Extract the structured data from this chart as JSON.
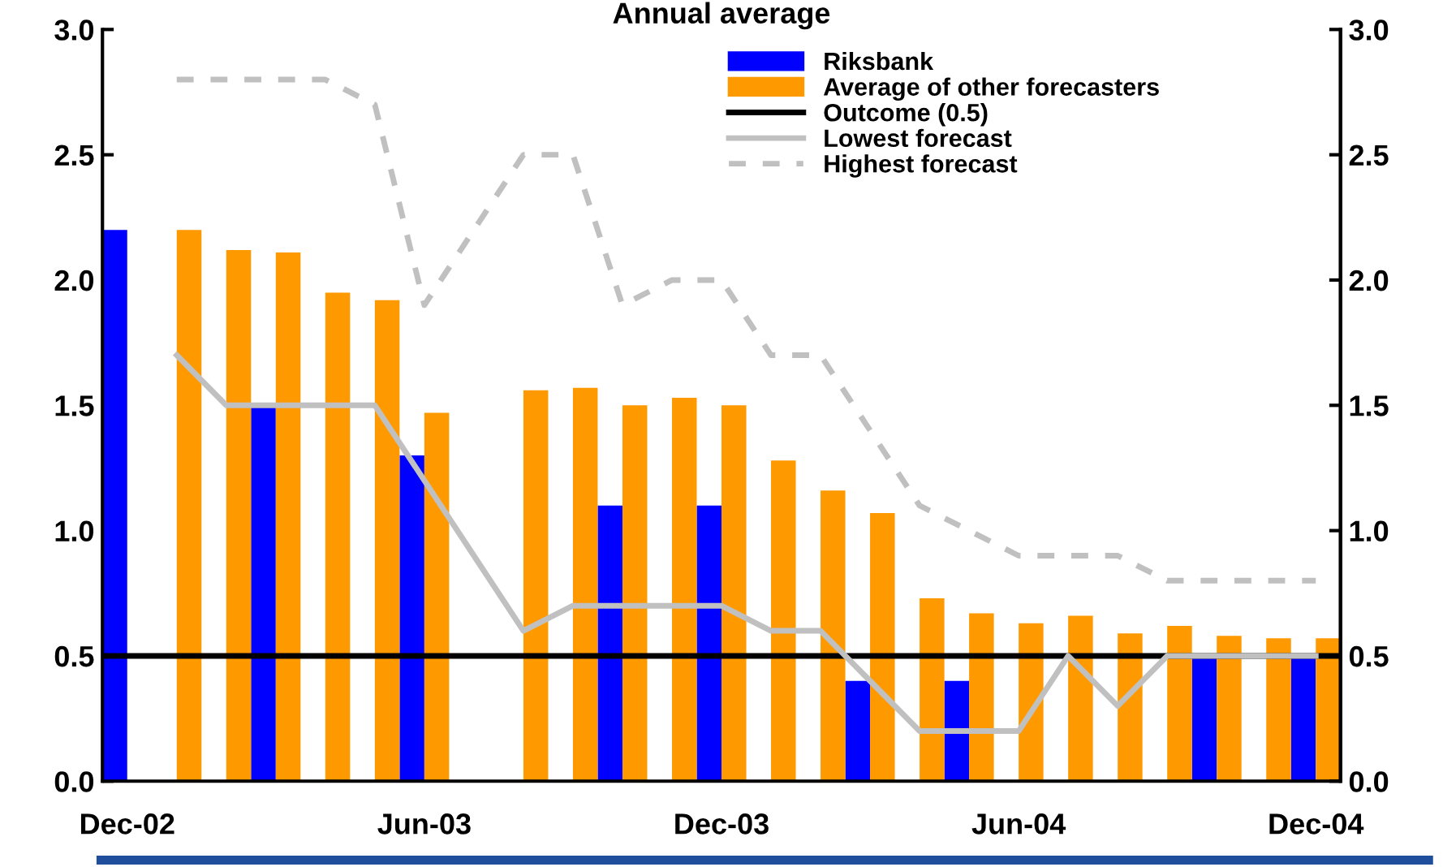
{
  "chart_data": {
    "type": "bar",
    "title": "Annual average",
    "categories": [
      "Dec-02",
      null,
      null,
      null,
      null,
      null,
      "Jun-03",
      null,
      null,
      null,
      null,
      null,
      "Dec-03",
      null,
      null,
      null,
      null,
      null,
      "Jun-04",
      null,
      null,
      null,
      null,
      null,
      "Dec-04"
    ],
    "series": [
      {
        "name": "Riksbank",
        "color": "#0000ff",
        "values": [
          2.2,
          null,
          null,
          1.5,
          null,
          null,
          1.3,
          null,
          null,
          null,
          1.1,
          null,
          1.1,
          null,
          null,
          0.4,
          null,
          0.4,
          null,
          null,
          null,
          null,
          0.5,
          null,
          0.5
        ]
      },
      {
        "name": "Average of other forecasters",
        "color": "#ff9900",
        "values": [
          null,
          2.2,
          2.12,
          2.11,
          1.95,
          1.92,
          1.47,
          null,
          1.56,
          1.57,
          1.5,
          1.53,
          1.5,
          1.28,
          1.16,
          1.07,
          0.73,
          0.67,
          0.63,
          0.66,
          0.59,
          0.62,
          0.58,
          0.57,
          0.57
        ]
      },
      {
        "name": "Lowest forecast",
        "type": "line",
        "line_style": "solid",
        "color": "#c0c0c0",
        "values": [
          null,
          1.7,
          1.5,
          1.5,
          1.5,
          1.5,
          1.2,
          0.9,
          0.6,
          0.7,
          0.7,
          0.7,
          0.7,
          0.6,
          0.6,
          0.4,
          0.2,
          0.2,
          0.2,
          0.5,
          0.3,
          0.5,
          0.5,
          0.5,
          0.5
        ]
      },
      {
        "name": "Highest forecast",
        "type": "line",
        "line_style": "dashed",
        "color": "#c0c0c0",
        "values": [
          null,
          2.8,
          2.8,
          2.8,
          2.8,
          2.7,
          1.9,
          2.2,
          2.5,
          2.5,
          1.9,
          2.0,
          2.0,
          1.7,
          1.7,
          1.4,
          1.1,
          1.0,
          0.9,
          0.9,
          0.9,
          0.8,
          0.8,
          0.8,
          0.8
        ]
      }
    ],
    "ref_lines": [
      {
        "axis": "y",
        "value": 0.5,
        "label": "Outcome (0.5)",
        "color": "#000000",
        "line_style": "solid"
      }
    ],
    "ylim": [
      0,
      3.0
    ],
    "yticks": [
      {
        "value": 0,
        "label": "0.0"
      },
      0.5,
      {
        "value": 1,
        "label": "1.0"
      },
      1.5,
      {
        "value": 2,
        "label": "2.0"
      },
      2.5,
      {
        "value": 3,
        "label": "3.0"
      }
    ],
    "y2lim": [
      0,
      3.0
    ],
    "y2ticks": [
      {
        "value": 0,
        "label": "0.0"
      },
      0.5,
      {
        "value": 1,
        "label": "1.0"
      },
      1.5,
      {
        "value": 2,
        "label": "2.0"
      },
      2.5,
      {
        "value": 3,
        "label": "3.0"
      }
    ],
    "grid": false,
    "legend": "top"
  }
}
